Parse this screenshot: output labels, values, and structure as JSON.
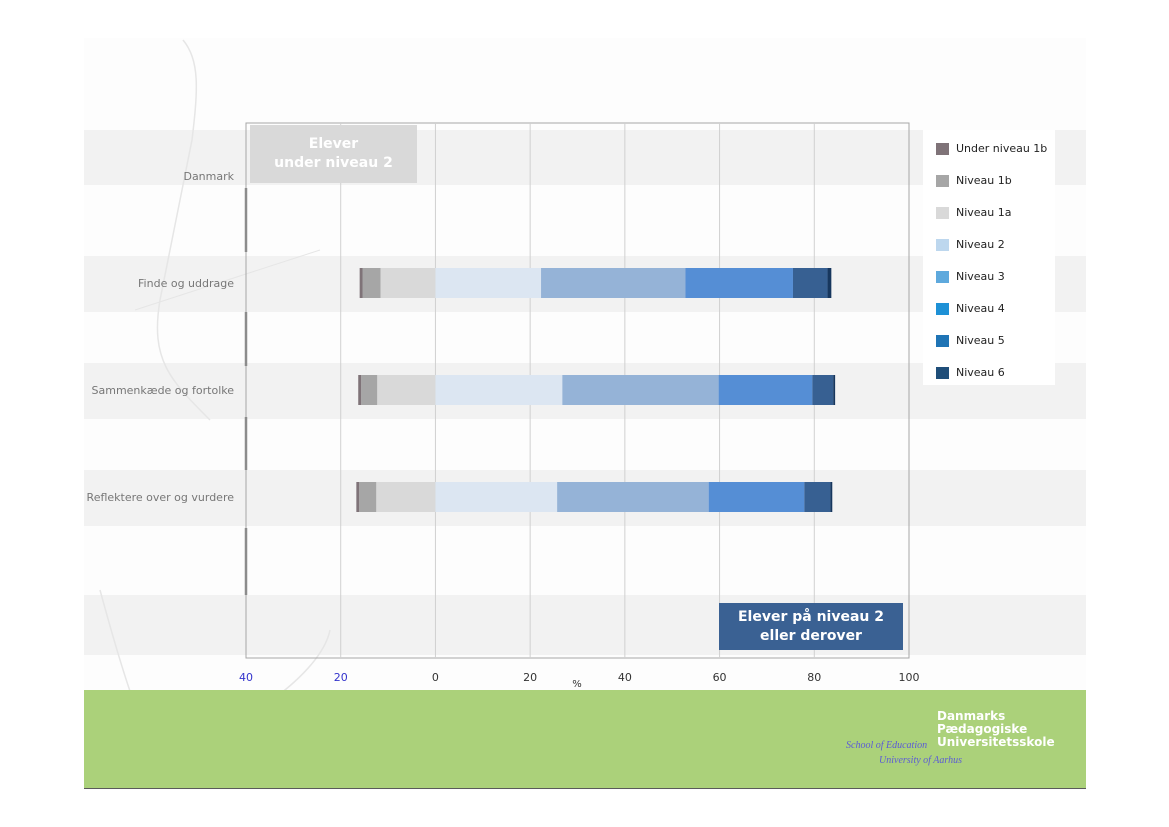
{
  "chart_data": {
    "type": "bar",
    "orientation": "horizontal",
    "stacked": true,
    "xlabel": "%",
    "xlim": [
      -40,
      100
    ],
    "x_ticks": [
      "40",
      "20",
      "0",
      "20",
      "40",
      "60",
      "80",
      "100"
    ],
    "grid": true,
    "legend_position": "right",
    "categories": [
      "Danmark",
      "Finde og uddrage",
      "Sammenkæde og fortolke",
      "Reflektere over og vurdere"
    ],
    "series": [
      {
        "name": "Under niveau 1b",
        "color": "#7f7378",
        "values": [
          null,
          0.6,
          0.6,
          0.6
        ],
        "below_zero": true
      },
      {
        "name": "Niveau 1b",
        "color": "#a6a6a6",
        "values": [
          null,
          3.8,
          3.4,
          3.6
        ],
        "below_zero": true
      },
      {
        "name": "Niveau 1a",
        "color": "#d9d9d9",
        "values": [
          null,
          11.6,
          12.3,
          12.5
        ],
        "below_zero": true
      },
      {
        "name": "Niveau 2",
        "color": "#dce6f2",
        "values": [
          null,
          22.3,
          26.8,
          25.7
        ]
      },
      {
        "name": "Niveau 3",
        "color": "#95b3d7",
        "values": [
          null,
          30.5,
          33.0,
          32.0
        ]
      },
      {
        "name": "Niveau 4",
        "color": "#558ed5",
        "values": [
          null,
          22.7,
          19.8,
          20.2
        ]
      },
      {
        "name": "Niveau 5",
        "color": "#376092",
        "values": [
          null,
          7.3,
          4.4,
          5.5
        ]
      },
      {
        "name": "Niveau 6",
        "color": "#17375e",
        "values": [
          null,
          0.8,
          0.4,
          0.4
        ]
      }
    ],
    "legend_colors": [
      "#7f7378",
      "#a6a6a6",
      "#d9d9d9",
      "#bdd7ee",
      "#5ea9dd",
      "#1e91d6",
      "#1f74b5",
      "#1f4e79"
    ]
  },
  "annotations": {
    "below_level2": "Elever\nunder niveau 2",
    "at_or_above_level2": "Elever på niveau 2\neller derover"
  },
  "logo": {
    "line1": "Danmarks",
    "line2": "Pædagogiske",
    "line3": "Universitetsskole",
    "sub1": "School of Education",
    "sub2": "University of Aarhus"
  },
  "colors": {
    "footer": "#abd17a",
    "under_box": "#d9d9d9",
    "over_box": "#3a6193",
    "neg_tick_color": "#3333cc"
  }
}
